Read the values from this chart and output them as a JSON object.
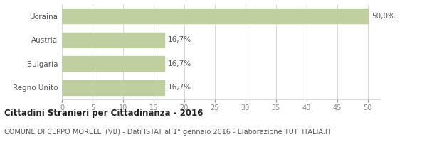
{
  "categories": [
    "Regno Unito",
    "Bulgaria",
    "Austria",
    "Ucraina"
  ],
  "values": [
    16.7,
    16.7,
    16.7,
    50.0
  ],
  "labels": [
    "16,7%",
    "16,7%",
    "16,7%",
    "50,0%"
  ],
  "bar_color": "#bfcfa0",
  "bar_edge_color": "#bfcfa0",
  "title_bold": "Cittadini Stranieri per Cittadinanza - 2016",
  "subtitle": "COMUNE DI CEPPO MORELLI (VB) - Dati ISTAT al 1° gennaio 2016 - Elaborazione TUTTITALIA.IT",
  "xlim": [
    0,
    52
  ],
  "xticks": [
    0,
    5,
    10,
    15,
    20,
    25,
    30,
    35,
    40,
    45,
    50
  ],
  "grid_color": "#d8d8d8",
  "background_color": "#ffffff",
  "label_color": "#555555",
  "tick_color": "#888888",
  "title_fontsize": 8.5,
  "subtitle_fontsize": 7.0,
  "bar_label_fontsize": 7.5,
  "ytick_fontsize": 7.5,
  "xtick_fontsize": 7.0
}
